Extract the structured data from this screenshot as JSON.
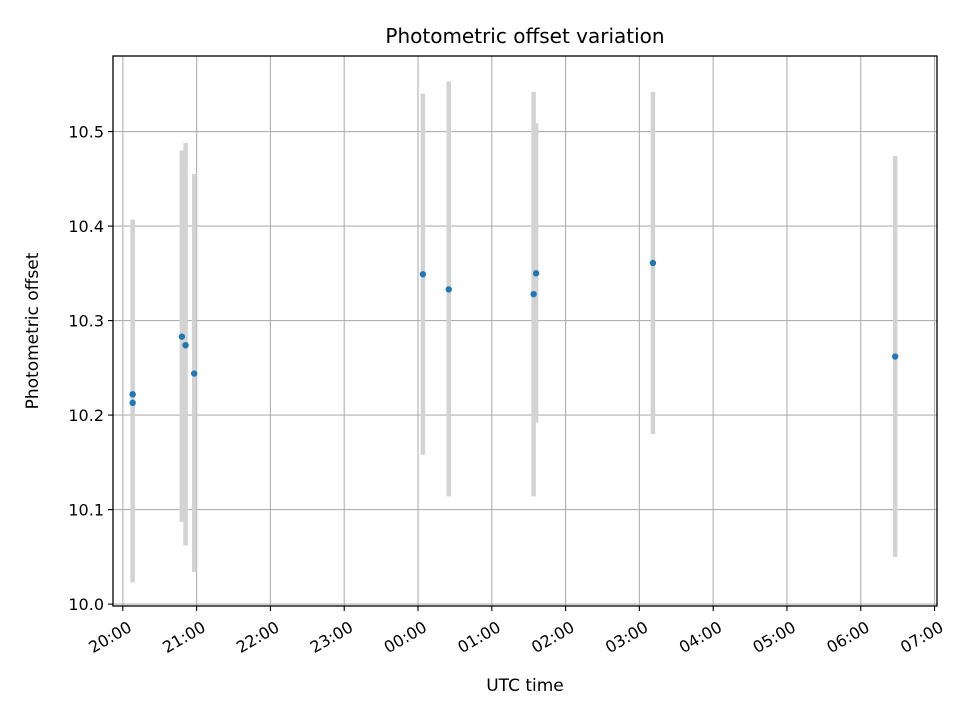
{
  "chart_data": {
    "type": "scatter",
    "title": "Photometric offset variation",
    "xlabel": "UTC time",
    "ylabel": "Photometric offset",
    "x_axis": "time",
    "x_range": [
      "2023-01-01T19:52",
      "2023-01-02T07:02"
    ],
    "ylim": [
      9.998,
      10.58
    ],
    "grid": true,
    "x_ticks": [
      "20:00",
      "21:00",
      "22:00",
      "23:00",
      "00:00",
      "01:00",
      "02:00",
      "03:00",
      "04:00",
      "05:00",
      "06:00",
      "07:00"
    ],
    "y_ticks": [
      10.0,
      10.1,
      10.2,
      10.3,
      10.4,
      10.5
    ],
    "y_tick_labels": [
      "10.0",
      "10.1",
      "10.2",
      "10.3",
      "10.4",
      "10.5"
    ],
    "point_color": "#1f77b4",
    "errorbar_color": "#d3d3d3",
    "points": [
      {
        "time": "20:08",
        "y": 10.222,
        "low": 10.023,
        "high": 10.407
      },
      {
        "time": "20:08",
        "y": 10.213,
        "low": 10.023,
        "high": 10.404
      },
      {
        "time": "20:48",
        "y": 10.283,
        "low": 10.087,
        "high": 10.48
      },
      {
        "time": "20:51",
        "y": 10.274,
        "low": 10.062,
        "high": 10.488
      },
      {
        "time": "20:58",
        "y": 10.244,
        "low": 10.034,
        "high": 10.455
      },
      {
        "time": "00:04",
        "y": 10.349,
        "low": 10.158,
        "high": 10.54
      },
      {
        "time": "00:25",
        "y": 10.333,
        "low": 10.114,
        "high": 10.553
      },
      {
        "time": "01:34",
        "y": 10.328,
        "low": 10.114,
        "high": 10.542
      },
      {
        "time": "01:36",
        "y": 10.35,
        "low": 10.192,
        "high": 10.509
      },
      {
        "time": "03:11",
        "y": 10.361,
        "low": 10.18,
        "high": 10.542
      },
      {
        "time": "06:28",
        "y": 10.262,
        "low": 10.05,
        "high": 10.474
      }
    ]
  }
}
